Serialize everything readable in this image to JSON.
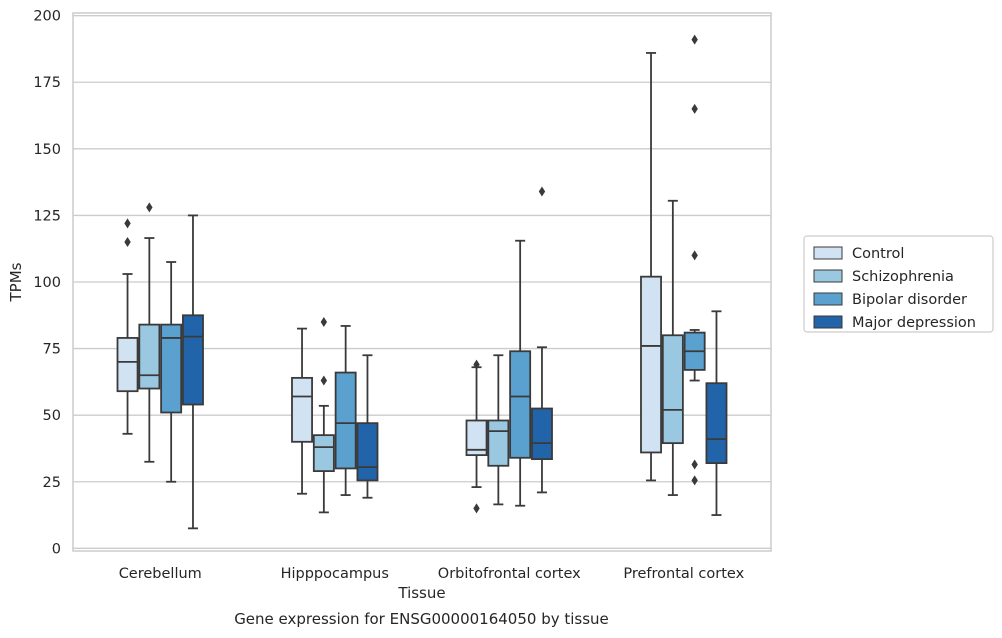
{
  "caption": "Gene expression for ENSG00000164050 by tissue",
  "chart_data": {
    "type": "box",
    "xlabel": "Tissue",
    "ylabel": "TPMs",
    "ylim": [
      -1,
      201
    ],
    "yticks": [
      0,
      25,
      50,
      75,
      100,
      125,
      150,
      175,
      200
    ],
    "categories": [
      "Cerebellum",
      "Hipppocampus",
      "Orbitofrontal cortex",
      "Prefrontal cortex"
    ],
    "grid": "horizontal",
    "legend_position": "right",
    "series": [
      {
        "name": "Control",
        "color": "#d1e2f2",
        "boxes": [
          {
            "whisker_low": 43,
            "q1": 59,
            "median": 70,
            "q3": 79,
            "whisker_high": 103,
            "outliers": [
              115,
              122
            ]
          },
          {
            "whisker_low": 20.5,
            "q1": 40,
            "median": 57,
            "q3": 64,
            "whisker_high": 82.5,
            "outliers": []
          },
          {
            "whisker_low": 23,
            "q1": 35,
            "median": 37,
            "q3": 48,
            "whisker_high": 68,
            "outliers": [
              15,
              69
            ]
          },
          {
            "whisker_low": 25.5,
            "q1": 36,
            "median": 76,
            "q3": 102,
            "whisker_high": 186,
            "outliers": []
          }
        ]
      },
      {
        "name": "Schizophrenia",
        "color": "#9ac8e0",
        "boxes": [
          {
            "whisker_low": 32.5,
            "q1": 60,
            "median": 65,
            "q3": 84,
            "whisker_high": 116.5,
            "outliers": [
              128
            ]
          },
          {
            "whisker_low": 13.5,
            "q1": 29,
            "median": 38,
            "q3": 42.5,
            "whisker_high": 53.5,
            "outliers": [
              63,
              85
            ]
          },
          {
            "whisker_low": 16.5,
            "q1": 31,
            "median": 44,
            "q3": 48,
            "whisker_high": 72.5,
            "outliers": []
          },
          {
            "whisker_low": 20,
            "q1": 39.5,
            "median": 52,
            "q3": 80,
            "whisker_high": 130.5,
            "outliers": []
          }
        ]
      },
      {
        "name": "Bipolar disorder",
        "color": "#5aa1cf",
        "boxes": [
          {
            "whisker_low": 25,
            "q1": 51,
            "median": 79,
            "q3": 84,
            "whisker_high": 107.5,
            "outliers": []
          },
          {
            "whisker_low": 20,
            "q1": 30,
            "median": 47,
            "q3": 66,
            "whisker_high": 83.5,
            "outliers": []
          },
          {
            "whisker_low": 16,
            "q1": 34,
            "median": 57,
            "q3": 74,
            "whisker_high": 115.5,
            "outliers": []
          },
          {
            "whisker_low": 63,
            "q1": 67,
            "median": 74,
            "q3": 81,
            "whisker_high": 82,
            "outliers": [
              31.5,
              25.5,
              110,
              165,
              191
            ]
          }
        ]
      },
      {
        "name": "Major depression",
        "color": "#2264aa",
        "boxes": [
          {
            "whisker_low": 7.5,
            "q1": 54,
            "median": 79.5,
            "q3": 87.5,
            "whisker_high": 125,
            "outliers": []
          },
          {
            "whisker_low": 19,
            "q1": 25.5,
            "median": 30.5,
            "q3": 47,
            "whisker_high": 72.5,
            "outliers": []
          },
          {
            "whisker_low": 21,
            "q1": 33.5,
            "median": 39.5,
            "q3": 52.5,
            "whisker_high": 75.5,
            "outliers": [
              134
            ]
          },
          {
            "whisker_low": 12.5,
            "q1": 32,
            "median": 41,
            "q3": 62,
            "whisker_high": 89,
            "outliers": []
          }
        ]
      }
    ]
  }
}
